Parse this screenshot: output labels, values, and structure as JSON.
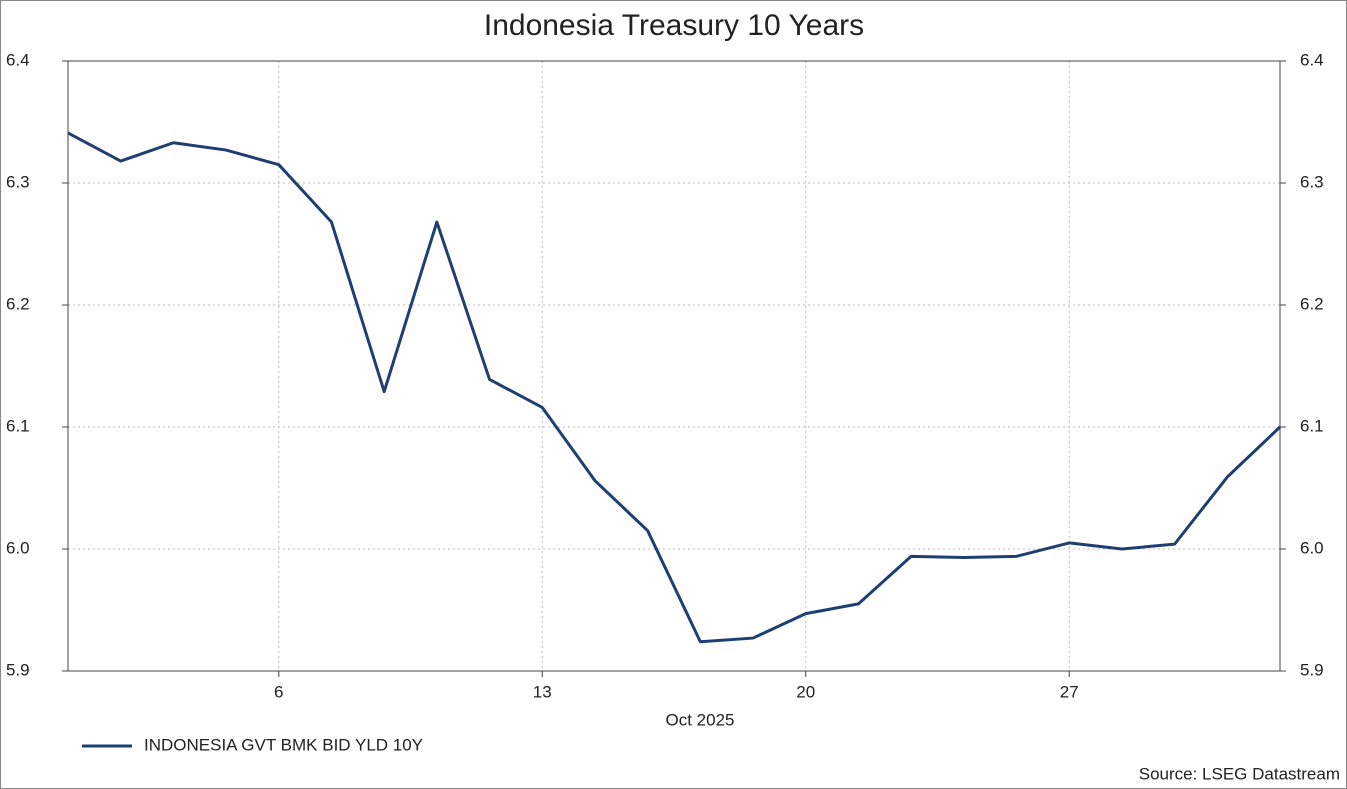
{
  "chart_data": {
    "type": "line",
    "title": "Indonesia Treasury 10 Years",
    "x_label": "Oct 2025",
    "categories": [
      null,
      null,
      null,
      null,
      "6",
      null,
      null,
      null,
      null,
      "13",
      null,
      null,
      null,
      null,
      "20",
      null,
      null,
      null,
      null,
      "27",
      null,
      null,
      null,
      null
    ],
    "series": [
      {
        "name": "INDONESIA GVT BMK BID YLD 10Y",
        "color": "#1f3f73",
        "values": [
          6.341,
          6.318,
          6.333,
          6.327,
          6.315,
          6.268,
          6.129,
          6.268,
          6.139,
          6.116,
          6.056,
          6.015,
          5.924,
          5.927,
          5.947,
          5.955,
          5.994,
          5.993,
          5.994,
          6.005,
          6.0,
          6.004,
          6.059,
          6.1
        ]
      }
    ],
    "ylim": [
      5.9,
      6.4
    ],
    "yticks": [
      5.9,
      {
        "value": 6,
        "label": "6.0"
      },
      6.1,
      6.2,
      6.3,
      6.4
    ],
    "grid": true,
    "legend": "bottom-left",
    "source": "Source: LSEG Datastream"
  }
}
